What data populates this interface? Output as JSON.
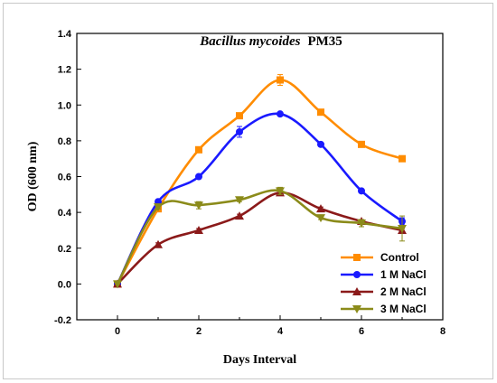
{
  "chart_data": {
    "type": "line",
    "title": {
      "italic": "Bacillus mycoides",
      "normal": "PM35"
    },
    "xlabel": "Days Interval",
    "ylabel": "OD (600 nm)",
    "xlim": [
      -1,
      8
    ],
    "ylim": [
      -0.2,
      1.4
    ],
    "xticks": [
      0,
      2,
      4,
      6,
      8
    ],
    "yticks": [
      -0.2,
      0.0,
      0.2,
      0.4,
      0.6,
      0.8,
      1.0,
      1.2,
      1.4
    ],
    "ytick_labels": [
      "-0.2",
      "0.0",
      "0.2",
      "0.4",
      "0.6",
      "0.8",
      "1.0",
      "1.2",
      "1.4"
    ],
    "legend_position": "bottom-right",
    "grid": false,
    "x": [
      0,
      1,
      2,
      3,
      4,
      5,
      6,
      7
    ],
    "series": [
      {
        "name": "Control",
        "color": "#ff8c00",
        "marker": "square",
        "values": [
          0.0,
          0.42,
          0.75,
          0.94,
          1.14,
          0.96,
          0.78,
          0.7
        ],
        "errors": [
          0.0,
          0.01,
          0.01,
          0.01,
          0.03,
          0.01,
          0.01,
          0.01
        ]
      },
      {
        "name": "1 M NaCl",
        "color": "#1a1aff",
        "marker": "circle",
        "values": [
          0.0,
          0.46,
          0.6,
          0.85,
          0.95,
          0.78,
          0.52,
          0.35
        ],
        "errors": [
          0.0,
          0.01,
          0.01,
          0.03,
          0.01,
          0.01,
          0.01,
          0.02
        ]
      },
      {
        "name": "2 M NaCl",
        "color": "#8b1a1a",
        "marker": "triangle-up",
        "values": [
          0.0,
          0.22,
          0.3,
          0.38,
          0.51,
          0.42,
          0.35,
          0.3
        ],
        "errors": [
          0.0,
          0.01,
          0.01,
          0.01,
          0.01,
          0.01,
          0.01,
          0.01
        ]
      },
      {
        "name": "3 M NaCl",
        "color": "#8b8b1a",
        "marker": "triangle-down",
        "values": [
          0.0,
          0.43,
          0.44,
          0.47,
          0.52,
          0.37,
          0.34,
          0.31
        ],
        "errors": [
          0.0,
          0.01,
          0.02,
          0.01,
          0.02,
          0.01,
          0.02,
          0.07
        ]
      }
    ]
  }
}
